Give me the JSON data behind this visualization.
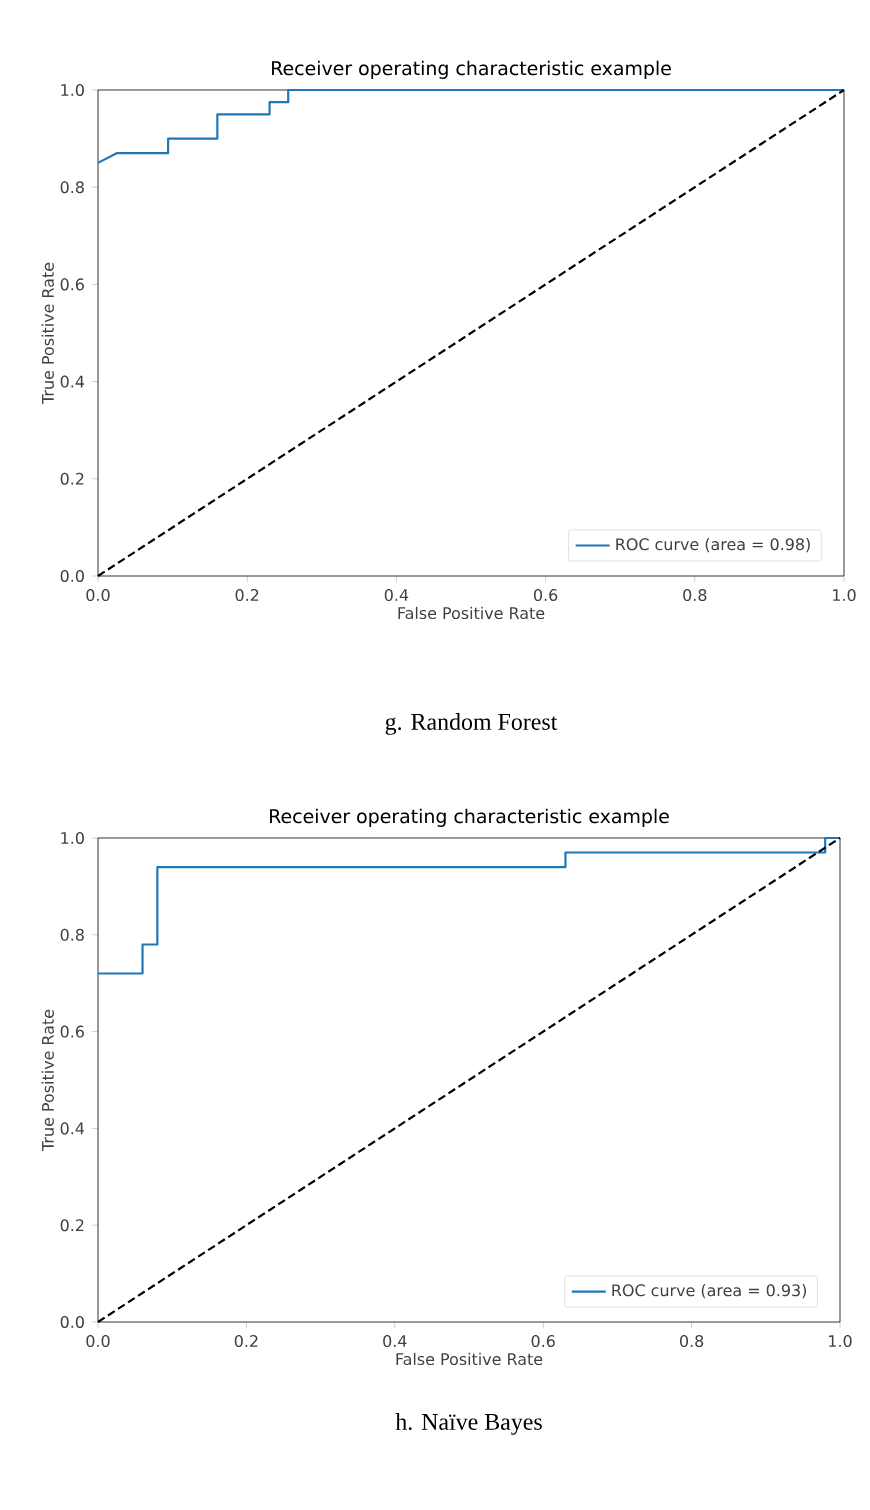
{
  "chart_data": [
    {
      "type": "line",
      "title": "Receiver operating characteristic example",
      "xlabel": "False Positive Rate",
      "ylabel": "True Positive Rate",
      "xlim": [
        0,
        1
      ],
      "ylim": [
        0,
        1
      ],
      "xticks": [
        {
          "value": 0,
          "label": "0.0"
        },
        {
          "value": 0.2,
          "label": "0.2"
        },
        {
          "value": 0.4,
          "label": "0.4"
        },
        {
          "value": 0.6,
          "label": "0.6"
        },
        {
          "value": 0.8,
          "label": "0.8"
        },
        {
          "value": 1,
          "label": "1.0"
        }
      ],
      "yticks": [
        {
          "value": 0,
          "label": "0.0"
        },
        {
          "value": 0.2,
          "label": "0.2"
        },
        {
          "value": 0.4,
          "label": "0.4"
        },
        {
          "value": 0.6,
          "label": "0.6"
        },
        {
          "value": 0.8,
          "label": "0.8"
        },
        {
          "value": 1,
          "label": "1.0"
        }
      ],
      "legend": "bottom right",
      "annotations": [
        "g.  Random Forest"
      ],
      "series": [
        {
          "name": "ROC curve (area = 0.98)",
          "color": "#1f77b4",
          "line_style": "solid",
          "x": [
            0,
            0.025,
            0.094,
            0.094,
            0.16,
            0.16,
            0.23,
            0.23,
            0.255,
            0.255,
            1
          ],
          "values": [
            0.85,
            0.87,
            0.87,
            0.9,
            0.9,
            0.95,
            0.95,
            0.975,
            0.975,
            1,
            1
          ]
        },
        {
          "color": "#000000",
          "line_style": "dashed",
          "x": [
            0,
            1
          ],
          "values": [
            0,
            1
          ]
        }
      ]
    },
    {
      "type": "line",
      "title": "Receiver operating characteristic example",
      "xlabel": "False Positive Rate",
      "ylabel": "True Positive Rate",
      "xlim": [
        0,
        1
      ],
      "ylim": [
        0,
        1
      ],
      "xticks": [
        {
          "value": 0,
          "label": "0.0"
        },
        {
          "value": 0.2,
          "label": "0.2"
        },
        {
          "value": 0.4,
          "label": "0.4"
        },
        {
          "value": 0.6,
          "label": "0.6"
        },
        {
          "value": 0.8,
          "label": "0.8"
        },
        {
          "value": 1,
          "label": "1.0"
        }
      ],
      "yticks": [
        {
          "value": 0,
          "label": "0.0"
        },
        {
          "value": 0.2,
          "label": "0.2"
        },
        {
          "value": 0.4,
          "label": "0.4"
        },
        {
          "value": 0.6,
          "label": "0.6"
        },
        {
          "value": 0.8,
          "label": "0.8"
        },
        {
          "value": 1,
          "label": "1.0"
        }
      ],
      "legend": "bottom right",
      "annotations": [
        "h. Naïve Bayes"
      ],
      "series": [
        {
          "name": "ROC curve (area = 0.93)",
          "color": "#1f77b4",
          "line_style": "solid",
          "x": [
            0,
            0.06,
            0.06,
            0.08,
            0.08,
            0.63,
            0.63,
            0.98,
            0.98,
            1
          ],
          "values": [
            0.72,
            0.72,
            0.78,
            0.78,
            0.94,
            0.94,
            0.97,
            0.97,
            1,
            1
          ]
        },
        {
          "color": "#000000",
          "line_style": "dashed",
          "x": [
            0,
            1
          ],
          "values": [
            0,
            1
          ]
        }
      ]
    }
  ]
}
